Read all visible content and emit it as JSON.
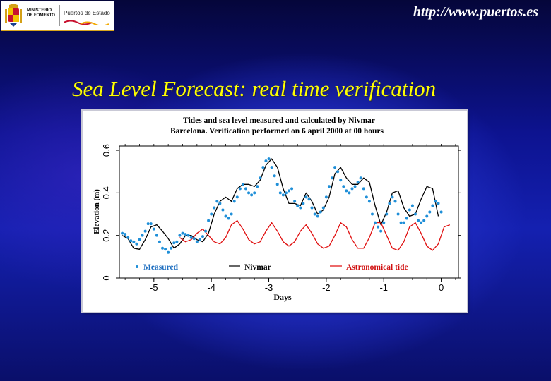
{
  "header": {
    "ministry_line1": "MINISTERIO",
    "ministry_line2": "DE FOMENTO",
    "brand": "Puertos de Estado",
    "url": "http://www.puertos.es"
  },
  "slide_title": "Sea Level Forecast: real time verification",
  "colors": {
    "measured": "#1f8fd8",
    "nivmar": "#000000",
    "astro": "#e01010",
    "title": "#ffff00"
  },
  "chart_data": {
    "type": "line",
    "title_line1": "Tides and sea level measured and calculated by Nivmar",
    "title_line2": "Barcelona. Verification performed on 6 april 2000 at 00 hours",
    "xlabel": "Days",
    "ylabel": "Elevation (m)",
    "xlim": [
      -5.6,
      0.3
    ],
    "ylim": [
      0,
      0.62
    ],
    "xticks": [
      "-5",
      "-4",
      "-3",
      "-2",
      "-1",
      "0"
    ],
    "yticks": [
      "0",
      "0.2",
      "0.4",
      "0.6"
    ],
    "legend": [
      "Measured",
      "Nivmar",
      "Astronomical tide"
    ],
    "series": [
      {
        "name": "Nivmar",
        "style": "line",
        "x": [
          -5.55,
          -5.45,
          -5.35,
          -5.25,
          -5.15,
          -5.05,
          -4.95,
          -4.85,
          -4.75,
          -4.65,
          -4.55,
          -4.45,
          -4.35,
          -4.25,
          -4.15,
          -4.05,
          -3.95,
          -3.85,
          -3.75,
          -3.65,
          -3.55,
          -3.45,
          -3.35,
          -3.25,
          -3.15,
          -3.05,
          -2.95,
          -2.85,
          -2.75,
          -2.65,
          -2.55,
          -2.45,
          -2.35,
          -2.25,
          -2.15,
          -2.05,
          -1.95,
          -1.85,
          -1.75,
          -1.65,
          -1.55,
          -1.45,
          -1.35,
          -1.25,
          -1.15,
          -1.05,
          -0.95,
          -0.85,
          -0.75,
          -0.65,
          -0.55,
          -0.45,
          -0.35,
          -0.25,
          -0.15,
          -0.05
        ],
        "y": [
          0.2,
          0.185,
          0.14,
          0.135,
          0.18,
          0.24,
          0.25,
          0.22,
          0.185,
          0.14,
          0.16,
          0.2,
          0.2,
          0.18,
          0.17,
          0.21,
          0.3,
          0.36,
          0.38,
          0.36,
          0.42,
          0.44,
          0.44,
          0.43,
          0.46,
          0.53,
          0.56,
          0.52,
          0.42,
          0.35,
          0.35,
          0.34,
          0.4,
          0.36,
          0.3,
          0.32,
          0.38,
          0.49,
          0.52,
          0.47,
          0.44,
          0.44,
          0.47,
          0.45,
          0.34,
          0.25,
          0.31,
          0.4,
          0.41,
          0.33,
          0.29,
          0.3,
          0.37,
          0.43,
          0.42,
          0.29
        ]
      },
      {
        "name": "Astronomical tide",
        "style": "line",
        "x": [
          -4.55,
          -4.45,
          -4.35,
          -4.25,
          -4.15,
          -4.05,
          -3.95,
          -3.85,
          -3.75,
          -3.65,
          -3.55,
          -3.45,
          -3.35,
          -3.25,
          -3.15,
          -3.05,
          -2.95,
          -2.85,
          -2.75,
          -2.65,
          -2.55,
          -2.45,
          -2.35,
          -2.25,
          -2.15,
          -2.05,
          -1.95,
          -1.85,
          -1.75,
          -1.65,
          -1.55,
          -1.45,
          -1.35,
          -1.25,
          -1.15,
          -1.05,
          -0.95,
          -0.85,
          -0.75,
          -0.65,
          -0.55,
          -0.45,
          -0.35,
          -0.25,
          -0.15,
          -0.05,
          0.05,
          0.15
        ],
        "y": [
          0.19,
          0.17,
          0.18,
          0.21,
          0.23,
          0.2,
          0.17,
          0.16,
          0.19,
          0.25,
          0.27,
          0.23,
          0.18,
          0.16,
          0.17,
          0.22,
          0.26,
          0.22,
          0.17,
          0.15,
          0.17,
          0.22,
          0.25,
          0.21,
          0.16,
          0.14,
          0.15,
          0.2,
          0.26,
          0.24,
          0.18,
          0.14,
          0.14,
          0.19,
          0.26,
          0.26,
          0.2,
          0.14,
          0.13,
          0.17,
          0.24,
          0.26,
          0.21,
          0.15,
          0.13,
          0.16,
          0.24,
          0.25
        ]
      },
      {
        "name": "Measured",
        "style": "points",
        "x": [
          -5.55,
          -5.5,
          -5.45,
          -5.4,
          -5.35,
          -5.3,
          -5.25,
          -5.2,
          -5.15,
          -5.1,
          -5.05,
          -5.0,
          -4.95,
          -4.9,
          -4.85,
          -4.8,
          -4.75,
          -4.7,
          -4.65,
          -4.6,
          -4.55,
          -4.5,
          -4.45,
          -4.4,
          -4.35,
          -4.3,
          -4.25,
          -4.2,
          -4.15,
          -4.1,
          -4.05,
          -4.0,
          -3.95,
          -3.9,
          -3.85,
          -3.8,
          -3.75,
          -3.7,
          -3.65,
          -3.6,
          -3.55,
          -3.5,
          -3.45,
          -3.4,
          -3.35,
          -3.3,
          -3.25,
          -3.2,
          -3.15,
          -3.1,
          -3.05,
          -3.0,
          -2.95,
          -2.9,
          -2.85,
          -2.8,
          -2.75,
          -2.7,
          -2.65,
          -2.6,
          -2.55,
          -2.5,
          -2.45,
          -2.4,
          -2.35,
          -2.3,
          -2.25,
          -2.2,
          -2.15,
          -2.1,
          -2.05,
          -2.0,
          -1.95,
          -1.9,
          -1.85,
          -1.8,
          -1.75,
          -1.7,
          -1.65,
          -1.6,
          -1.55,
          -1.5,
          -1.45,
          -1.4,
          -1.35,
          -1.3,
          -1.25,
          -1.2,
          -1.15,
          -1.1,
          -1.05,
          -1.0,
          -0.95,
          -0.9,
          -0.85,
          -0.8,
          -0.75,
          -0.7,
          -0.65,
          -0.6,
          -0.55,
          -0.5,
          -0.45,
          -0.4,
          -0.35,
          -0.3,
          -0.25,
          -0.2,
          -0.15,
          -0.1,
          -0.05,
          0.0
        ],
        "y": [
          0.21,
          0.205,
          0.19,
          0.175,
          0.17,
          0.16,
          0.18,
          0.2,
          0.22,
          0.255,
          0.255,
          0.23,
          0.2,
          0.17,
          0.14,
          0.135,
          0.12,
          0.14,
          0.165,
          0.17,
          0.2,
          0.21,
          0.205,
          0.2,
          0.19,
          0.185,
          0.17,
          0.18,
          0.195,
          0.22,
          0.27,
          0.3,
          0.33,
          0.36,
          0.35,
          0.32,
          0.29,
          0.28,
          0.3,
          0.36,
          0.38,
          0.42,
          0.44,
          0.42,
          0.4,
          0.39,
          0.4,
          0.43,
          0.47,
          0.52,
          0.55,
          0.56,
          0.52,
          0.48,
          0.44,
          0.4,
          0.39,
          0.4,
          0.41,
          0.42,
          0.36,
          0.34,
          0.33,
          0.35,
          0.38,
          0.37,
          0.33,
          0.3,
          0.29,
          0.31,
          0.33,
          0.38,
          0.43,
          0.47,
          0.52,
          0.5,
          0.46,
          0.43,
          0.41,
          0.4,
          0.42,
          0.43,
          0.45,
          0.47,
          0.42,
          0.38,
          0.36,
          0.3,
          0.26,
          0.24,
          0.22,
          0.26,
          0.3,
          0.35,
          0.38,
          0.36,
          0.3,
          0.26,
          0.26,
          0.28,
          0.32,
          0.34,
          0.3,
          0.27,
          0.26,
          0.27,
          0.29,
          0.31,
          0.34,
          0.36,
          0.35,
          0.31
        ]
      }
    ]
  }
}
